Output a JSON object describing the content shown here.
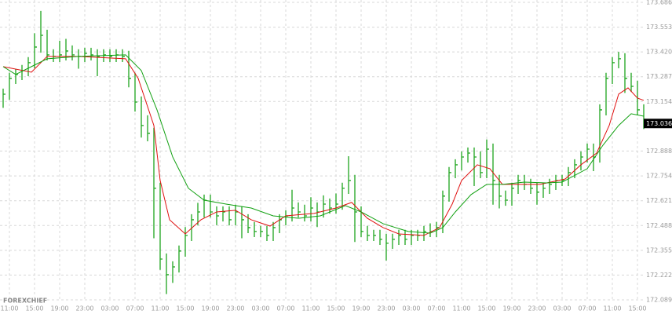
{
  "chart_data": {
    "type": "hlc",
    "watermark": "FOREXCHIEF",
    "color": "#1ea51e",
    "grid": true,
    "x": [
      1,
      2,
      3,
      4,
      5,
      6,
      7,
      8,
      9,
      10,
      11,
      12,
      13,
      14,
      15,
      16,
      17,
      18,
      19,
      20,
      21,
      22,
      23,
      24,
      25,
      26,
      27,
      28,
      29,
      30,
      31,
      32,
      33,
      34,
      35,
      36,
      37,
      38,
      39,
      40,
      41,
      42,
      43,
      44,
      45,
      46,
      47,
      48,
      49,
      50,
      51,
      52,
      53,
      54,
      55,
      56,
      57,
      58,
      59,
      60,
      61,
      62,
      63,
      64,
      65,
      66,
      67,
      68,
      69,
      70,
      71,
      72,
      73,
      74,
      75,
      76,
      77,
      78,
      79,
      80,
      81,
      82,
      83,
      84,
      85,
      86,
      87,
      88,
      89,
      90,
      91,
      92,
      93,
      94,
      95,
      96,
      97,
      98,
      99,
      100,
      101,
      102,
      103
    ],
    "high": [
      173.223,
      173.308,
      173.329,
      173.35,
      173.392,
      173.52,
      173.64,
      173.539,
      173.434,
      173.48,
      173.49,
      173.455,
      173.434,
      173.442,
      173.442,
      173.434,
      173.434,
      173.434,
      173.434,
      173.434,
      173.426,
      173.308,
      173.181,
      173.08,
      173.013,
      172.718,
      172.338,
      172.296,
      172.381,
      172.48,
      172.549,
      172.61,
      172.654,
      172.654,
      172.591,
      172.591,
      172.591,
      172.6,
      172.591,
      172.549,
      172.507,
      172.486,
      172.486,
      172.507,
      172.549,
      172.57,
      172.68,
      172.612,
      172.6,
      172.64,
      172.612,
      172.65,
      172.633,
      172.66,
      172.718,
      172.86,
      172.76,
      172.591,
      172.486,
      172.465,
      172.465,
      172.444,
      172.444,
      172.465,
      172.465,
      172.465,
      172.465,
      172.486,
      172.5,
      172.507,
      172.676,
      172.802,
      172.844,
      172.886,
      172.907,
      172.907,
      172.886,
      172.95,
      172.928,
      172.76,
      172.676,
      172.718,
      172.76,
      172.76,
      172.739,
      172.718,
      172.718,
      172.739,
      172.76,
      172.76,
      172.802,
      172.844,
      172.886,
      172.928,
      172.928,
      173.139,
      173.308,
      173.392,
      173.42,
      173.413,
      173.308,
      173.265,
      173.139
    ],
    "low": [
      173.12,
      173.163,
      173.248,
      173.269,
      173.29,
      173.332,
      173.416,
      173.374,
      173.366,
      173.366,
      173.374,
      173.374,
      173.33,
      173.366,
      173.374,
      173.29,
      173.366,
      173.366,
      173.366,
      173.366,
      173.23,
      173.1,
      172.96,
      172.94,
      172.42,
      172.25,
      172.12,
      172.18,
      172.236,
      172.321,
      172.405,
      172.489,
      172.531,
      172.531,
      172.49,
      172.51,
      172.489,
      172.489,
      172.42,
      172.447,
      172.426,
      172.426,
      172.405,
      172.405,
      172.447,
      172.489,
      172.51,
      172.531,
      172.51,
      172.51,
      172.48,
      172.531,
      172.552,
      172.552,
      172.573,
      172.658,
      172.4,
      172.426,
      172.405,
      172.405,
      172.384,
      172.3,
      172.363,
      172.384,
      172.384,
      172.384,
      172.405,
      172.405,
      172.426,
      172.426,
      172.447,
      172.616,
      172.742,
      172.784,
      172.826,
      172.7,
      172.742,
      172.742,
      172.6,
      172.58,
      172.594,
      172.594,
      172.658,
      172.679,
      172.658,
      172.6,
      172.637,
      172.658,
      172.679,
      172.7,
      172.7,
      172.742,
      172.784,
      172.826,
      172.78,
      172.826,
      173.079,
      173.248,
      173.332,
      173.2,
      173.205,
      173.079,
      173.006
    ],
    "close": [
      173.193,
      173.278,
      173.299,
      173.32,
      173.362,
      173.446,
      173.509,
      173.404,
      173.396,
      173.404,
      173.425,
      173.404,
      173.396,
      173.412,
      173.404,
      173.396,
      173.404,
      173.396,
      173.404,
      173.396,
      173.278,
      173.151,
      173.025,
      172.983,
      172.688,
      172.308,
      172.224,
      172.266,
      172.351,
      172.435,
      172.519,
      172.561,
      172.624,
      172.561,
      172.54,
      172.561,
      172.519,
      172.561,
      172.519,
      172.477,
      172.456,
      172.456,
      172.435,
      172.477,
      172.519,
      172.54,
      172.582,
      172.561,
      172.54,
      172.582,
      172.561,
      172.603,
      172.582,
      172.603,
      172.688,
      172.73,
      172.561,
      172.456,
      172.435,
      172.435,
      172.414,
      172.393,
      172.414,
      172.435,
      172.414,
      172.435,
      172.435,
      172.456,
      172.456,
      172.477,
      172.646,
      172.772,
      172.814,
      172.856,
      172.877,
      172.856,
      172.772,
      172.898,
      172.73,
      172.646,
      172.624,
      172.688,
      172.73,
      172.709,
      172.688,
      172.667,
      172.688,
      172.709,
      172.73,
      172.73,
      172.772,
      172.814,
      172.856,
      172.898,
      172.856,
      173.109,
      173.278,
      173.362,
      173.383,
      173.278,
      173.235,
      173.109,
      173.036
    ],
    "lines": [
      {
        "color": "#e01010",
        "x": [
          1,
          5.5,
          8,
          13,
          20.5,
          22.5,
          25,
          26,
          27.5,
          30,
          32.5,
          35,
          38,
          40.5,
          43.5,
          46,
          50.5,
          54,
          56.5,
          59,
          61.5,
          64,
          68,
          70.5,
          72.5,
          74,
          76.5,
          78.5,
          80.5,
          83,
          86.5,
          90.5,
          93,
          95.5,
          97.5,
          99,
          100.5,
          102,
          103
        ],
        "values": [
          173.341,
          173.311,
          173.396,
          173.396,
          173.383,
          173.278,
          173.025,
          172.73,
          172.519,
          172.443,
          172.519,
          172.561,
          172.57,
          172.519,
          172.485,
          172.54,
          172.553,
          172.582,
          172.612,
          172.527,
          172.477,
          172.443,
          172.435,
          172.477,
          172.603,
          172.73,
          172.814,
          172.793,
          172.709,
          172.709,
          172.709,
          172.738,
          172.814,
          172.877,
          173.025,
          173.193,
          173.227,
          173.172,
          173.16
        ]
      },
      {
        "color": "#10a010",
        "x": [
          1,
          3,
          5.5,
          8,
          13,
          20.5,
          23,
          25.5,
          28,
          30.5,
          33,
          36.5,
          40.5,
          44,
          48,
          51.5,
          55.5,
          58,
          61.5,
          65.5,
          69,
          71,
          73,
          75.5,
          78,
          80.5,
          84,
          87.5,
          90,
          94,
          96.5,
          99,
          101,
          103
        ],
        "values": [
          173.341,
          173.299,
          173.341,
          173.383,
          173.396,
          173.404,
          173.32,
          173.109,
          172.856,
          172.688,
          172.624,
          172.603,
          172.582,
          172.54,
          172.527,
          172.54,
          172.595,
          172.561,
          172.498,
          172.456,
          172.447,
          172.477,
          172.561,
          172.654,
          172.709,
          172.709,
          172.721,
          172.717,
          172.721,
          172.793,
          172.919,
          173.025,
          173.088,
          173.075
        ]
      }
    ],
    "xlim": [
      0.5,
      104
    ],
    "xticks": [
      {
        "value": 2,
        "label": "11:00"
      },
      {
        "value": 6,
        "label": "15:00"
      },
      {
        "value": 10,
        "label": "19:00"
      },
      {
        "value": 14,
        "label": "23:00"
      },
      {
        "value": 18,
        "label": "03:00"
      },
      {
        "value": 22,
        "label": "07:00"
      },
      {
        "value": 26,
        "label": "11:00"
      },
      {
        "value": 30,
        "label": "15:00"
      },
      {
        "value": 34,
        "label": "19:00"
      },
      {
        "value": 38,
        "label": "23:00"
      },
      {
        "value": 42,
        "label": "03:00"
      },
      {
        "value": 46,
        "label": "07:00"
      },
      {
        "value": 50,
        "label": "11:00"
      },
      {
        "value": 54,
        "label": "15:00"
      },
      {
        "value": 58,
        "label": "19:00"
      },
      {
        "value": 62,
        "label": "23:00"
      },
      {
        "value": 66,
        "label": "03:00"
      },
      {
        "value": 70,
        "label": "07:00"
      },
      {
        "value": 74,
        "label": "11:00"
      },
      {
        "value": 78,
        "label": "15:00"
      },
      {
        "value": 82,
        "label": "19:00"
      },
      {
        "value": 86,
        "label": "23:00"
      },
      {
        "value": 90,
        "label": "03:00"
      },
      {
        "value": 94,
        "label": "07:00"
      },
      {
        "value": 98,
        "label": "11:00"
      },
      {
        "value": 102,
        "label": "15:00"
      }
    ],
    "ylim": [
      172.089,
      173.686
    ],
    "yticks": [
      {
        "value": 173.686,
        "label": "173.686"
      },
      {
        "value": 173.553,
        "label": "173.553"
      },
      {
        "value": 173.42,
        "label": "173.420"
      },
      {
        "value": 173.287,
        "label": "173.287"
      },
      {
        "value": 173.154,
        "label": "173.154"
      },
      {
        "value": 172.888,
        "label": "172.888"
      },
      {
        "value": 172.754,
        "label": "172.754"
      },
      {
        "value": 172.621,
        "label": "172.621"
      },
      {
        "value": 172.488,
        "label": "172.488"
      },
      {
        "value": 172.355,
        "label": "172.355"
      },
      {
        "value": 172.222,
        "label": "172.222"
      },
      {
        "value": 172.089,
        "label": "172.089"
      }
    ],
    "last_price": {
      "value": 173.036,
      "label": "173.036"
    }
  }
}
